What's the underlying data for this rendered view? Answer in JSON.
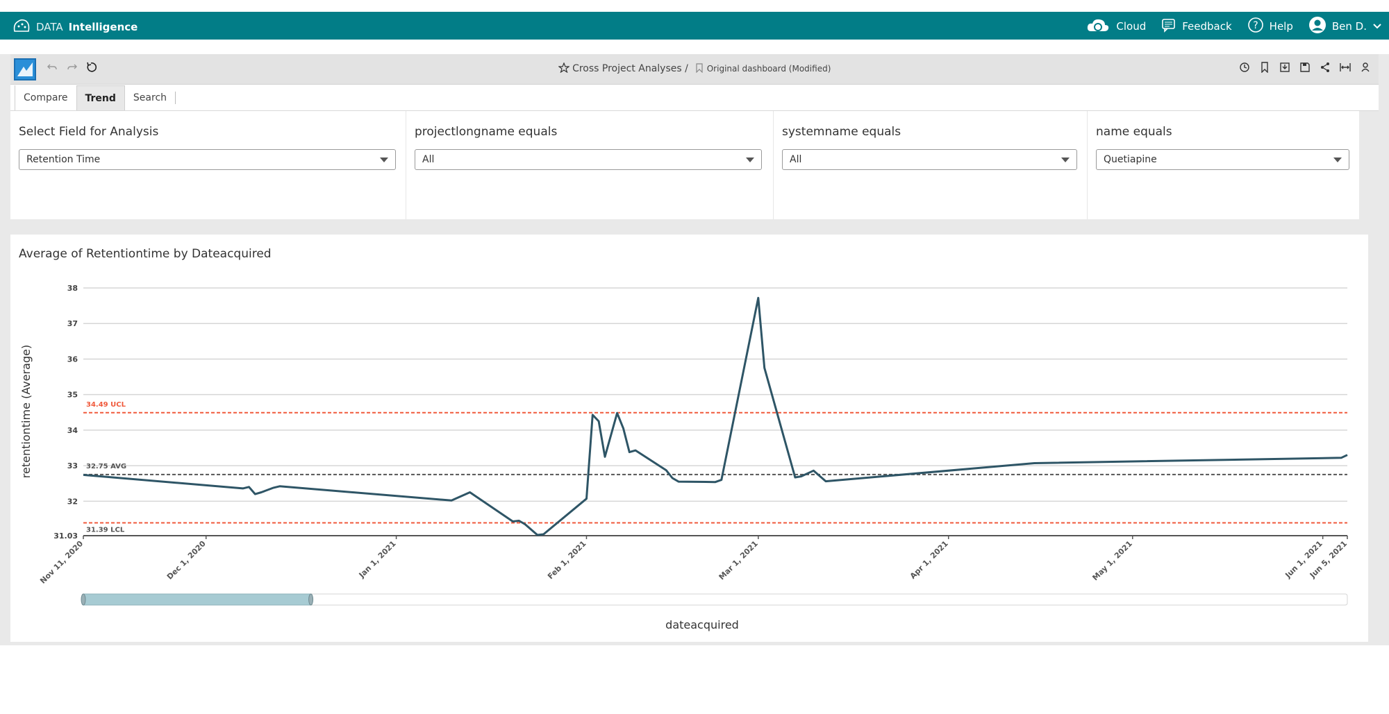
{
  "app": {
    "brand_light": "DATA",
    "brand_bold": "Intelligence"
  },
  "topbar": {
    "cloud": "Cloud",
    "feedback": "Feedback",
    "help": "Help",
    "user": "Ben D."
  },
  "toolbar": {
    "breadcrumb_root": "Cross Project Analyses /",
    "dashboard": "Original dashboard (Modified)"
  },
  "tabs": [
    "Compare",
    "Trend",
    "Search"
  ],
  "active_tab": "Trend",
  "filters": [
    {
      "label": "Select Field for Analysis",
      "value": "Retention Time"
    },
    {
      "label": "projectlongname equals",
      "value": "All"
    },
    {
      "label": "systemname equals",
      "value": "All"
    },
    {
      "label": "name equals",
      "value": "Quetiapine"
    }
  ],
  "colors": {
    "topbar": "#027d87",
    "line": "#2e5566",
    "control_limit": "#f05a3c",
    "avg": "#555555",
    "slider": "#a7cbd3"
  },
  "chart_data": {
    "type": "line",
    "title": "Average of Retentiontime by Dateacquired",
    "xlabel": "dateacquired",
    "ylabel": "retentiontime (Average)",
    "ylim": [
      31.03,
      38
    ],
    "yticks": [
      31.03,
      32,
      33,
      34,
      35,
      36,
      37,
      38
    ],
    "x_range": [
      "2020-11-11",
      "2021-06-05"
    ],
    "xticks": [
      {
        "date": "2020-11-11",
        "label": "Nov 11, 2020"
      },
      {
        "date": "2020-12-01",
        "label": "Dec 1, 2020"
      },
      {
        "date": "2021-01-01",
        "label": "Jan 1, 2021"
      },
      {
        "date": "2021-02-01",
        "label": "Feb 1, 2021"
      },
      {
        "date": "2021-03-01",
        "label": "Mar 1, 2021"
      },
      {
        "date": "2021-04-01",
        "label": "Apr 1, 2021"
      },
      {
        "date": "2021-05-01",
        "label": "May 1, 2021"
      },
      {
        "date": "2021-06-01",
        "label": "Jun 1, 2021"
      },
      {
        "date": "2021-06-05",
        "label": "Jun 5, 2021"
      }
    ],
    "reference_lines": [
      {
        "label": "34.49 UCL",
        "value": 34.49,
        "kind": "ucl"
      },
      {
        "label": "32.75 AVG",
        "value": 32.75,
        "kind": "avg"
      },
      {
        "label": "31.39 LCL",
        "value": 31.39,
        "kind": "lcl"
      }
    ],
    "series": [
      {
        "points": [
          [
            "2020-11-11",
            32.74
          ],
          [
            "2020-12-07",
            32.36
          ],
          [
            "2020-12-08",
            32.4
          ],
          [
            "2020-12-09",
            32.2
          ],
          [
            "2020-12-10",
            32.25
          ],
          [
            "2020-12-12",
            32.38
          ],
          [
            "2020-12-13",
            32.42
          ],
          [
            "2021-01-10",
            32.02
          ],
          [
            "2021-01-13",
            32.25
          ],
          [
            "2021-01-20",
            31.43
          ],
          [
            "2021-01-21",
            31.45
          ],
          [
            "2021-01-22",
            31.35
          ],
          [
            "2021-01-24",
            31.05
          ],
          [
            "2021-01-25",
            31.07
          ],
          [
            "2021-02-01",
            32.07
          ],
          [
            "2021-02-02",
            34.43
          ],
          [
            "2021-02-03",
            34.25
          ],
          [
            "2021-02-04",
            33.25
          ],
          [
            "2021-02-06",
            34.48
          ],
          [
            "2021-02-07",
            34.05
          ],
          [
            "2021-02-08",
            33.38
          ],
          [
            "2021-02-09",
            33.43
          ],
          [
            "2021-02-14",
            32.87
          ],
          [
            "2021-02-15",
            32.65
          ],
          [
            "2021-02-16",
            32.55
          ],
          [
            "2021-02-22",
            32.54
          ],
          [
            "2021-02-23",
            32.6
          ],
          [
            "2021-03-01",
            37.72
          ],
          [
            "2021-03-02",
            35.75
          ],
          [
            "2021-03-07",
            32.67
          ],
          [
            "2021-03-08",
            32.7
          ],
          [
            "2021-03-10",
            32.86
          ],
          [
            "2021-03-12",
            32.56
          ],
          [
            "2021-04-15",
            33.07
          ],
          [
            "2021-06-04",
            33.22
          ],
          [
            "2021-06-05",
            33.3
          ]
        ]
      }
    ],
    "grid": true,
    "range_slider": {
      "start": 0,
      "end": 0.18
    }
  }
}
